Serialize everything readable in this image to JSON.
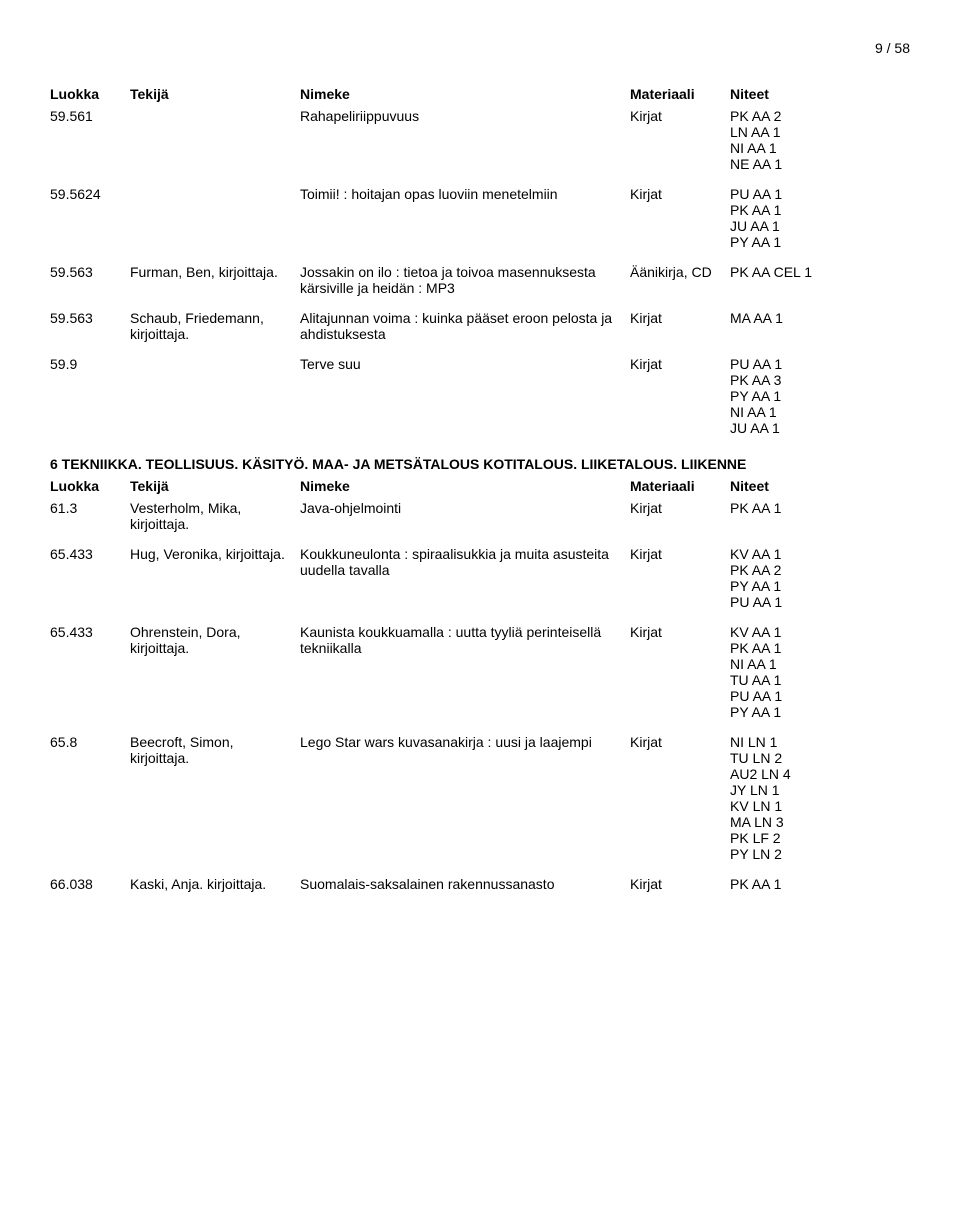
{
  "pageNumber": "9 / 58",
  "headers": {
    "luokka": "Luokka",
    "tekija": "Tekijä",
    "nimeke": "Nimeke",
    "materiaali": "Materiaali",
    "niteet": "Niteet"
  },
  "section1": [
    {
      "luokka": "59.561",
      "tekija": "",
      "nimeke": "Rahapeliriippuvuus",
      "materiaali": "Kirjat",
      "niteet": "PK AA 2\nLN AA 1\nNI AA 1\nNE AA 1"
    },
    {
      "luokka": "59.5624",
      "tekija": "",
      "nimeke": "Toimii! : hoitajan opas luoviin menetelmiin",
      "materiaali": "Kirjat",
      "niteet": "PU AA 1\nPK AA 1\nJU AA 1\nPY AA 1"
    },
    {
      "luokka": "59.563",
      "tekija": "Furman, Ben, kirjoittaja.",
      "nimeke": "Jossakin on ilo : tietoa ja toivoa masennuksesta kärsiville ja heidän : MP3",
      "materiaali": "Äänikirja, CD",
      "niteet": "PK AA CEL 1"
    },
    {
      "luokka": "59.563",
      "tekija": "Schaub, Friedemann, kirjoittaja.",
      "nimeke": "Alitajunnan voima : kuinka pääset eroon pelosta ja ahdistuksesta",
      "materiaali": "Kirjat",
      "niteet": "MA AA 1"
    },
    {
      "luokka": "59.9",
      "tekija": "",
      "nimeke": "Terve suu",
      "materiaali": "Kirjat",
      "niteet": "PU AA 1\nPK AA 3\nPY AA 1\nNI AA 1\nJU AA 1"
    }
  ],
  "section2Title": "6 TEKNIIKKA. TEOLLISUUS. KÄSITYÖ. MAA- JA METSÄTALOUS KOTITALOUS. LIIKETALOUS. LIIKENNE",
  "section2": [
    {
      "luokka": "61.3",
      "tekija": "Vesterholm, Mika, kirjoittaja.",
      "nimeke": "Java-ohjelmointi",
      "materiaali": "Kirjat",
      "niteet": "PK AA 1"
    },
    {
      "luokka": "65.433",
      "tekija": "Hug, Veronika, kirjoittaja.",
      "nimeke": "Koukkuneulonta : spiraalisukkia ja muita asusteita uudella tavalla",
      "materiaali": "Kirjat",
      "niteet": "KV AA 1\nPK AA 2\nPY AA 1\nPU AA 1"
    },
    {
      "luokka": "65.433",
      "tekija": "Ohrenstein, Dora, kirjoittaja.",
      "nimeke": "Kaunista koukkuamalla : uutta tyyliä perinteisellä tekniikalla",
      "materiaali": "Kirjat",
      "niteet": "KV AA 1\nPK AA 1\nNI AA 1\nTU AA 1\nPU AA 1\nPY AA 1"
    },
    {
      "luokka": "65.8",
      "tekija": "Beecroft, Simon, kirjoittaja.",
      "nimeke": "Lego Star wars kuvasanakirja : uusi ja laajempi",
      "materiaali": "Kirjat",
      "niteet": "NI LN 1\nTU LN 2\nAU2 LN 4\nJY LN 1\nKV LN 1\nMA LN 3\nPK LF 2\nPY LN 2"
    },
    {
      "luokka": "66.038",
      "tekija": "Kaski, Anja. kirjoittaja.",
      "nimeke": "Suomalais-saksalainen rakennussanasto",
      "materiaali": "Kirjat",
      "niteet": "PK AA 1"
    }
  ]
}
